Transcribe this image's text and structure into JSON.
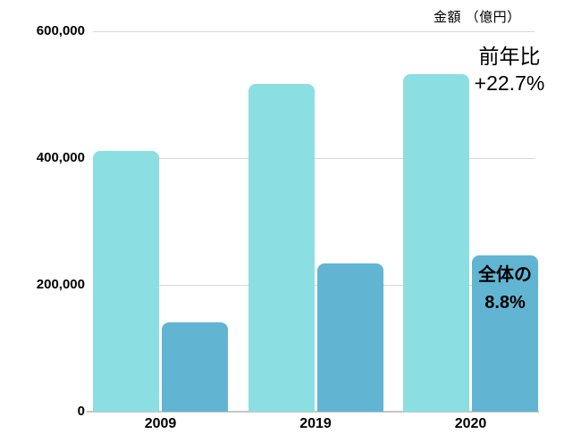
{
  "chart_data": {
    "type": "bar",
    "title": "",
    "axis_title": "金額 （億円）",
    "categories": [
      "2009",
      "2019",
      "2020"
    ],
    "series": [
      {
        "name": "light-cyan-bars",
        "color": "#8BDFE3",
        "values": [
          411000,
          516000,
          532000
        ]
      },
      {
        "name": "dark-blue-bars",
        "color": "#62B5D2",
        "values": [
          141000,
          234000,
          246000
        ]
      }
    ],
    "ylim": [
      0,
      600000
    ],
    "y_ticks": [
      {
        "value": 0,
        "label": "0"
      },
      {
        "value": 200000,
        "label": "200,000"
      },
      {
        "value": 400000,
        "label": "400,000"
      },
      {
        "value": 600000,
        "label": "600,000"
      }
    ],
    "grid": "horizontal",
    "legend": "none",
    "background": "#FFFFFF"
  },
  "annotations": {
    "yoy": {
      "line1": "前年比",
      "line2": "+22.7%"
    },
    "share": {
      "line1": "全体の",
      "line2": "8.8%"
    }
  },
  "colors": {
    "bar_light": "#8BDFE3",
    "bar_dark": "#62B5D2",
    "gridline": "#D8D8D8",
    "axis_line": "#C6C6C6",
    "text": "#000000"
  }
}
